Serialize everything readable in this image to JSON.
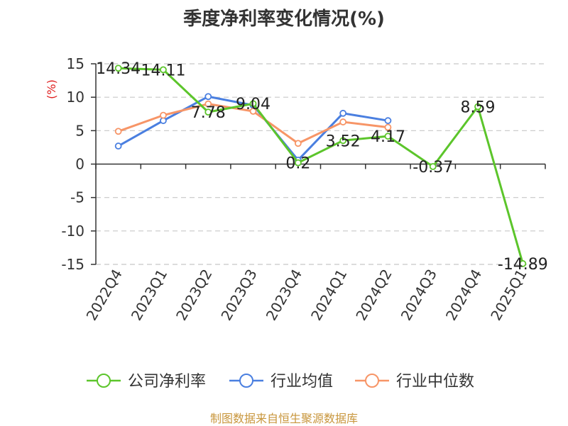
{
  "chart_data": {
    "type": "line",
    "title": "季度净利率变化情况(%)",
    "ylabel": "(%)",
    "xlabel": "",
    "categories": [
      "2022Q4",
      "2023Q1",
      "2023Q2",
      "2023Q3",
      "2023Q4",
      "2024Q1",
      "2024Q2",
      "2024Q3",
      "2024Q4",
      "2025Q1"
    ],
    "yticks": [
      15,
      10,
      5,
      0,
      -5,
      -10,
      -15
    ],
    "ylim": [
      -15,
      15
    ],
    "grid": "horizontal dashed",
    "legend_position": "bottom",
    "series": [
      {
        "name": "公司净利率",
        "color": "#5cc52b",
        "values": [
          14.34,
          14.11,
          7.78,
          9.04,
          0.2,
          3.52,
          4.17,
          -0.37,
          8.59,
          -14.89
        ],
        "labels": [
          "14.34",
          "14.11",
          "7.78",
          "9.04",
          "0.2",
          "3.52",
          "4.17",
          "-0.37",
          "8.59",
          "-14.89"
        ]
      },
      {
        "name": "行业均值",
        "color": "#4a7fe0",
        "values": [
          2.7,
          6.5,
          10.1,
          8.8,
          0.6,
          7.6,
          6.5,
          null,
          null,
          null
        ]
      },
      {
        "name": "行业中位数",
        "color": "#f79567",
        "values": [
          4.9,
          7.3,
          9.0,
          7.9,
          3.1,
          6.3,
          5.5,
          null,
          null,
          null
        ]
      }
    ]
  },
  "source": "制图数据来自恒生聚源数据库"
}
